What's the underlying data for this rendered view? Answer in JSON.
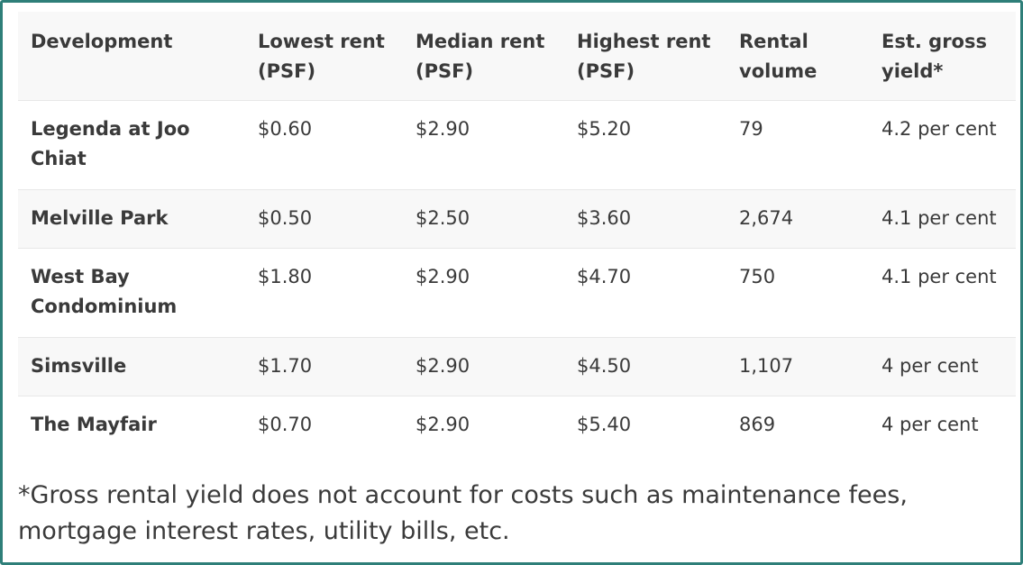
{
  "table": {
    "headers": [
      "Development",
      "Lowest rent (PSF)",
      "Median rent (PSF)",
      "Highest rent (PSF)",
      "Rental volume",
      "Est. gross yield*"
    ],
    "rows": [
      [
        "Legenda at Joo Chiat",
        "$0.60",
        "$2.90",
        "$5.20",
        "79",
        "4.2 per cent"
      ],
      [
        "Melville Park",
        "$0.50",
        "$2.50",
        "$3.60",
        "2,674",
        "4.1 per cent"
      ],
      [
        "West Bay Condominium",
        "$1.80",
        "$2.90",
        "$4.70",
        "750",
        "4.1 per cent"
      ],
      [
        "Simsville",
        "$1.70",
        "$2.90",
        "$4.50",
        "1,107",
        "4 per cent"
      ],
      [
        "The Mayfair",
        "$0.70",
        "$2.90",
        "$5.40",
        "869",
        "4 per cent"
      ]
    ]
  },
  "footnote": "*Gross rental yield does not account for costs such as maintenance fees, mortgage interest rates, utility bills, etc.",
  "colors": {
    "frame_border": "#2e7f79",
    "row_alt_background": "#f8f8f8",
    "text": "#3a3a3a"
  }
}
